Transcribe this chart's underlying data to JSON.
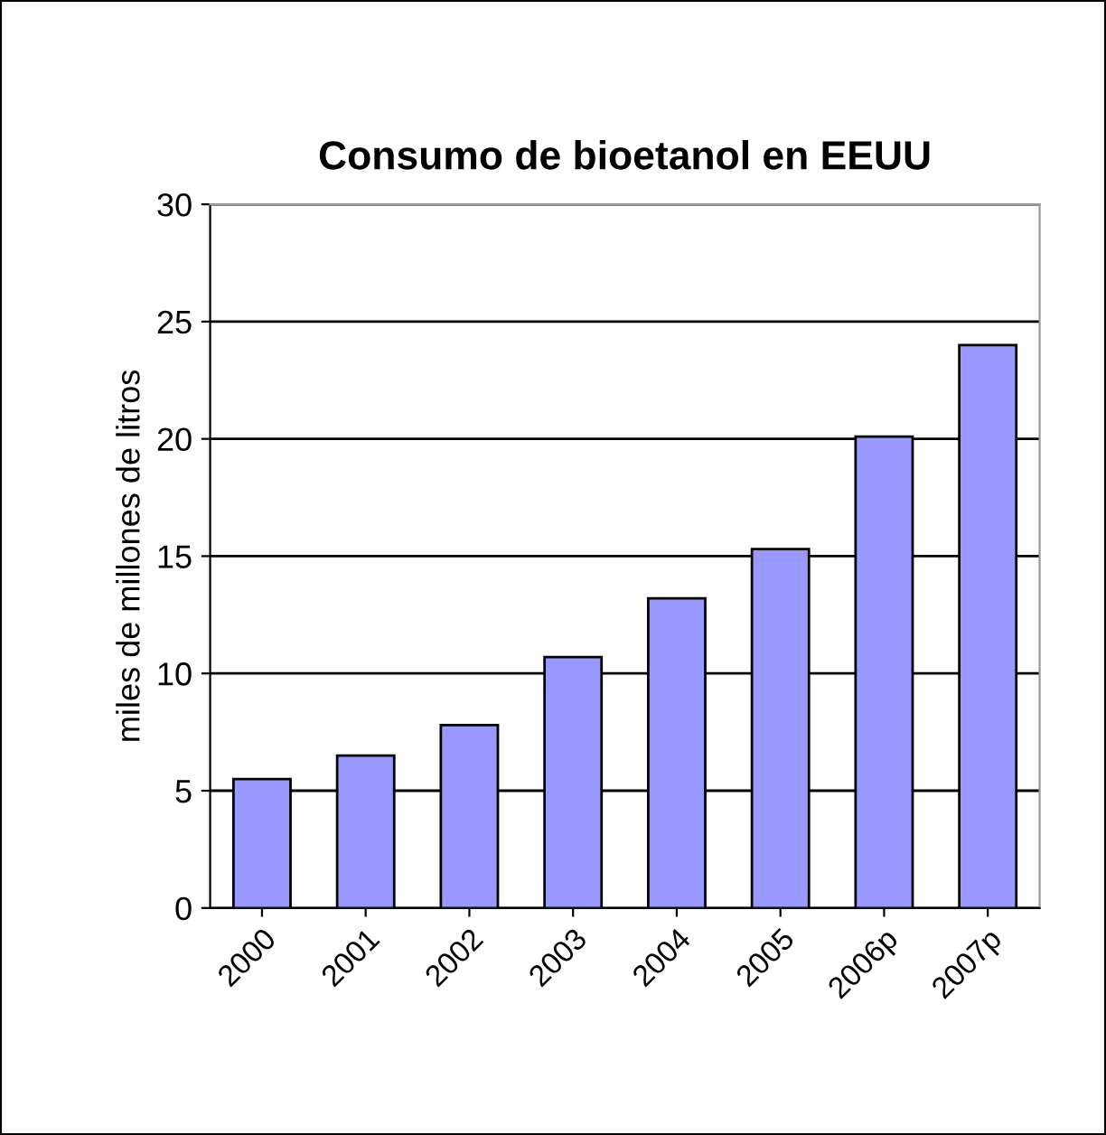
{
  "chart_data": {
    "type": "bar",
    "title": "Consumo de bioetanol en EEUU",
    "ylabel": "miles de millones de litros",
    "categories": [
      "2000",
      "2001",
      "2002",
      "2003",
      "2004",
      "2005",
      "2006p",
      "2007p"
    ],
    "values": [
      5.5,
      6.5,
      7.8,
      10.7,
      13.2,
      15.3,
      20.1,
      24.0
    ],
    "color": "#9999ff",
    "ylim": [
      0,
      30
    ],
    "yticks": [
      0,
      5,
      10,
      15,
      20,
      25,
      30
    ],
    "grid": "y",
    "legend": false
  }
}
